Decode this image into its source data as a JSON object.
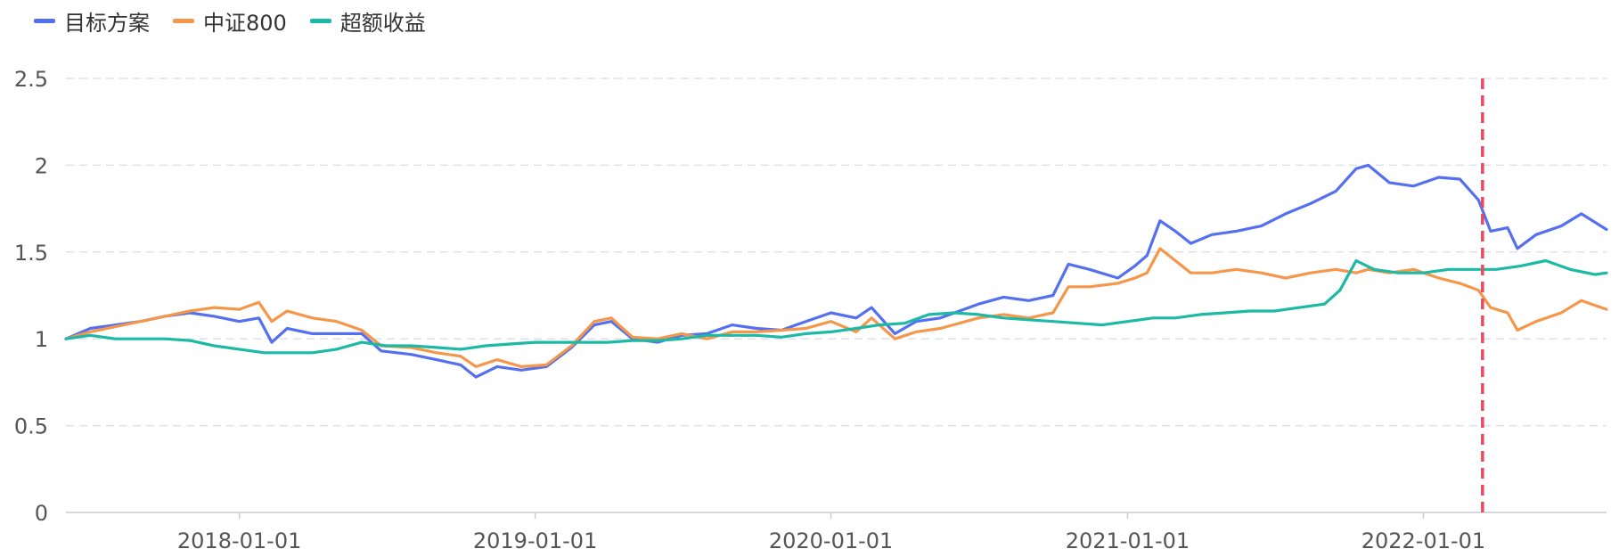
{
  "legend": {
    "items": [
      {
        "label": "目标方案",
        "color": "#5470f0"
      },
      {
        "label": "中证800",
        "color": "#f5974a"
      },
      {
        "label": "超额收益",
        "color": "#1cb9a4"
      }
    ]
  },
  "chart_data": {
    "type": "line",
    "title": "",
    "xlabel": "",
    "ylabel": "",
    "ylim": [
      0,
      2.5
    ],
    "y_ticks": [
      "0",
      "0.5",
      "1",
      "1.5",
      "2",
      "2.5"
    ],
    "x_ticks": [
      "2018-01-01",
      "2019-01-01",
      "2020-01-01",
      "2021-01-01",
      "2022-01-01"
    ],
    "x_range": [
      "2017-06-01",
      "2022-08-15"
    ],
    "grid": true,
    "legend_position": "top-left",
    "marker_line": {
      "date": "2022-03-15",
      "color": "#e84a5f",
      "style": "dashed"
    },
    "series": [
      {
        "name": "目标方案",
        "color": "#5470f0",
        "points": [
          [
            "2017-06-01",
            1.0
          ],
          [
            "2017-07-01",
            1.06
          ],
          [
            "2017-08-01",
            1.08
          ],
          [
            "2017-09-01",
            1.1
          ],
          [
            "2017-10-01",
            1.13
          ],
          [
            "2017-11-01",
            1.15
          ],
          [
            "2017-12-01",
            1.13
          ],
          [
            "2018-01-01",
            1.1
          ],
          [
            "2018-01-25",
            1.12
          ],
          [
            "2018-02-10",
            0.98
          ],
          [
            "2018-03-01",
            1.06
          ],
          [
            "2018-04-01",
            1.03
          ],
          [
            "2018-05-01",
            1.03
          ],
          [
            "2018-06-01",
            1.03
          ],
          [
            "2018-06-25",
            0.93
          ],
          [
            "2018-08-01",
            0.91
          ],
          [
            "2018-09-01",
            0.88
          ],
          [
            "2018-10-01",
            0.85
          ],
          [
            "2018-10-20",
            0.78
          ],
          [
            "2018-11-15",
            0.84
          ],
          [
            "2018-12-15",
            0.82
          ],
          [
            "2019-01-15",
            0.84
          ],
          [
            "2019-02-15",
            0.95
          ],
          [
            "2019-03-15",
            1.08
          ],
          [
            "2019-04-05",
            1.1
          ],
          [
            "2019-05-01",
            1.0
          ],
          [
            "2019-06-01",
            0.98
          ],
          [
            "2019-07-01",
            1.02
          ],
          [
            "2019-08-01",
            1.03
          ],
          [
            "2019-09-01",
            1.08
          ],
          [
            "2019-10-01",
            1.06
          ],
          [
            "2019-11-01",
            1.05
          ],
          [
            "2019-12-01",
            1.1
          ],
          [
            "2020-01-01",
            1.15
          ],
          [
            "2020-02-01",
            1.12
          ],
          [
            "2020-02-20",
            1.18
          ],
          [
            "2020-03-20",
            1.03
          ],
          [
            "2020-04-15",
            1.1
          ],
          [
            "2020-05-15",
            1.12
          ],
          [
            "2020-07-01",
            1.2
          ],
          [
            "2020-08-01",
            1.24
          ],
          [
            "2020-09-01",
            1.22
          ],
          [
            "2020-10-01",
            1.25
          ],
          [
            "2020-10-20",
            1.43
          ],
          [
            "2020-11-15",
            1.4
          ],
          [
            "2020-12-20",
            1.35
          ],
          [
            "2021-01-10",
            1.42
          ],
          [
            "2021-01-25",
            1.48
          ],
          [
            "2021-02-10",
            1.68
          ],
          [
            "2021-03-01",
            1.62
          ],
          [
            "2021-03-20",
            1.55
          ],
          [
            "2021-04-15",
            1.6
          ],
          [
            "2021-05-15",
            1.62
          ],
          [
            "2021-06-15",
            1.65
          ],
          [
            "2021-07-15",
            1.72
          ],
          [
            "2021-08-15",
            1.78
          ],
          [
            "2021-09-15",
            1.85
          ],
          [
            "2021-10-10",
            1.98
          ],
          [
            "2021-10-25",
            2.0
          ],
          [
            "2021-11-20",
            1.9
          ],
          [
            "2021-12-20",
            1.88
          ],
          [
            "2022-01-20",
            1.93
          ],
          [
            "2022-02-15",
            1.92
          ],
          [
            "2022-03-10",
            1.8
          ],
          [
            "2022-03-25",
            1.62
          ],
          [
            "2022-04-15",
            1.64
          ],
          [
            "2022-04-27",
            1.52
          ],
          [
            "2022-05-20",
            1.6
          ],
          [
            "2022-06-20",
            1.65
          ],
          [
            "2022-07-15",
            1.72
          ],
          [
            "2022-08-15",
            1.63
          ]
        ]
      },
      {
        "name": "中证800",
        "color": "#f5974a",
        "points": [
          [
            "2017-06-01",
            1.0
          ],
          [
            "2017-07-01",
            1.04
          ],
          [
            "2017-08-01",
            1.07
          ],
          [
            "2017-09-01",
            1.1
          ],
          [
            "2017-10-01",
            1.13
          ],
          [
            "2017-11-01",
            1.16
          ],
          [
            "2017-12-01",
            1.18
          ],
          [
            "2018-01-01",
            1.17
          ],
          [
            "2018-01-25",
            1.21
          ],
          [
            "2018-02-10",
            1.1
          ],
          [
            "2018-03-01",
            1.16
          ],
          [
            "2018-04-01",
            1.12
          ],
          [
            "2018-05-01",
            1.1
          ],
          [
            "2018-06-01",
            1.05
          ],
          [
            "2018-06-25",
            0.96
          ],
          [
            "2018-08-01",
            0.95
          ],
          [
            "2018-09-01",
            0.92
          ],
          [
            "2018-10-01",
            0.9
          ],
          [
            "2018-10-20",
            0.84
          ],
          [
            "2018-11-15",
            0.88
          ],
          [
            "2018-12-15",
            0.84
          ],
          [
            "2019-01-15",
            0.85
          ],
          [
            "2019-02-15",
            0.96
          ],
          [
            "2019-03-15",
            1.1
          ],
          [
            "2019-04-05",
            1.12
          ],
          [
            "2019-05-01",
            1.01
          ],
          [
            "2019-06-01",
            1.0
          ],
          [
            "2019-07-01",
            1.03
          ],
          [
            "2019-08-01",
            1.0
          ],
          [
            "2019-09-01",
            1.04
          ],
          [
            "2019-10-01",
            1.04
          ],
          [
            "2019-11-01",
            1.05
          ],
          [
            "2019-12-01",
            1.06
          ],
          [
            "2020-01-01",
            1.1
          ],
          [
            "2020-02-01",
            1.04
          ],
          [
            "2020-02-20",
            1.12
          ],
          [
            "2020-03-20",
            1.0
          ],
          [
            "2020-04-15",
            1.04
          ],
          [
            "2020-05-15",
            1.06
          ],
          [
            "2020-07-01",
            1.12
          ],
          [
            "2020-08-01",
            1.14
          ],
          [
            "2020-09-01",
            1.12
          ],
          [
            "2020-10-01",
            1.15
          ],
          [
            "2020-10-20",
            1.3
          ],
          [
            "2020-11-15",
            1.3
          ],
          [
            "2020-12-20",
            1.32
          ],
          [
            "2021-01-10",
            1.35
          ],
          [
            "2021-01-25",
            1.38
          ],
          [
            "2021-02-10",
            1.52
          ],
          [
            "2021-03-01",
            1.45
          ],
          [
            "2021-03-20",
            1.38
          ],
          [
            "2021-04-15",
            1.38
          ],
          [
            "2021-05-15",
            1.4
          ],
          [
            "2021-06-15",
            1.38
          ],
          [
            "2021-07-15",
            1.35
          ],
          [
            "2021-08-15",
            1.38
          ],
          [
            "2021-09-15",
            1.4
          ],
          [
            "2021-10-10",
            1.38
          ],
          [
            "2021-10-25",
            1.4
          ],
          [
            "2021-11-20",
            1.38
          ],
          [
            "2021-12-20",
            1.4
          ],
          [
            "2022-01-20",
            1.35
          ],
          [
            "2022-02-15",
            1.32
          ],
          [
            "2022-03-10",
            1.28
          ],
          [
            "2022-03-25",
            1.18
          ],
          [
            "2022-04-15",
            1.15
          ],
          [
            "2022-04-27",
            1.05
          ],
          [
            "2022-05-20",
            1.1
          ],
          [
            "2022-06-20",
            1.15
          ],
          [
            "2022-07-15",
            1.22
          ],
          [
            "2022-08-15",
            1.17
          ]
        ]
      },
      {
        "name": "超额收益",
        "color": "#1cb9a4",
        "points": [
          [
            "2017-06-01",
            1.0
          ],
          [
            "2017-07-01",
            1.02
          ],
          [
            "2017-08-01",
            1.0
          ],
          [
            "2017-09-01",
            1.0
          ],
          [
            "2017-10-01",
            1.0
          ],
          [
            "2017-11-01",
            0.99
          ],
          [
            "2017-12-01",
            0.96
          ],
          [
            "2018-01-01",
            0.94
          ],
          [
            "2018-02-01",
            0.92
          ],
          [
            "2018-03-01",
            0.92
          ],
          [
            "2018-04-01",
            0.92
          ],
          [
            "2018-05-01",
            0.94
          ],
          [
            "2018-06-01",
            0.98
          ],
          [
            "2018-07-01",
            0.96
          ],
          [
            "2018-08-01",
            0.96
          ],
          [
            "2018-09-01",
            0.95
          ],
          [
            "2018-10-01",
            0.94
          ],
          [
            "2018-11-01",
            0.96
          ],
          [
            "2018-12-01",
            0.97
          ],
          [
            "2019-01-01",
            0.98
          ],
          [
            "2019-02-01",
            0.98
          ],
          [
            "2019-03-01",
            0.98
          ],
          [
            "2019-04-01",
            0.98
          ],
          [
            "2019-05-01",
            0.99
          ],
          [
            "2019-06-01",
            0.99
          ],
          [
            "2019-07-01",
            1.0
          ],
          [
            "2019-08-01",
            1.02
          ],
          [
            "2019-09-01",
            1.02
          ],
          [
            "2019-10-01",
            1.02
          ],
          [
            "2019-11-01",
            1.01
          ],
          [
            "2019-12-01",
            1.03
          ],
          [
            "2020-01-01",
            1.04
          ],
          [
            "2020-02-01",
            1.06
          ],
          [
            "2020-03-01",
            1.08
          ],
          [
            "2020-04-01",
            1.09
          ],
          [
            "2020-05-01",
            1.14
          ],
          [
            "2020-06-01",
            1.15
          ],
          [
            "2020-07-01",
            1.14
          ],
          [
            "2020-08-01",
            1.12
          ],
          [
            "2020-09-01",
            1.11
          ],
          [
            "2020-10-01",
            1.1
          ],
          [
            "2020-11-01",
            1.09
          ],
          [
            "2020-12-01",
            1.08
          ],
          [
            "2021-01-01",
            1.1
          ],
          [
            "2021-02-01",
            1.12
          ],
          [
            "2021-03-01",
            1.12
          ],
          [
            "2021-04-01",
            1.14
          ],
          [
            "2021-05-01",
            1.15
          ],
          [
            "2021-06-01",
            1.16
          ],
          [
            "2021-07-01",
            1.16
          ],
          [
            "2021-08-01",
            1.18
          ],
          [
            "2021-09-01",
            1.2
          ],
          [
            "2021-09-20",
            1.28
          ],
          [
            "2021-10-10",
            1.45
          ],
          [
            "2021-11-01",
            1.4
          ],
          [
            "2021-12-01",
            1.38
          ],
          [
            "2022-01-01",
            1.38
          ],
          [
            "2022-02-01",
            1.4
          ],
          [
            "2022-03-01",
            1.4
          ],
          [
            "2022-04-01",
            1.4
          ],
          [
            "2022-05-01",
            1.42
          ],
          [
            "2022-06-01",
            1.45
          ],
          [
            "2022-07-01",
            1.4
          ],
          [
            "2022-08-01",
            1.37
          ],
          [
            "2022-08-15",
            1.38
          ]
        ]
      }
    ]
  }
}
